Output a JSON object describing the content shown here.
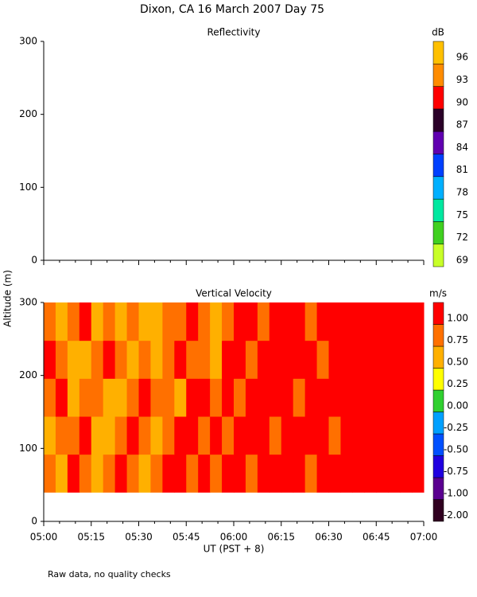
{
  "title": "Dixon, CA 16 March 2007  Day  75",
  "ylabel": "Altitude (m)",
  "footnote": "Raw data, no quality checks",
  "chart_data": [
    {
      "type": "heatmap",
      "title": "Reflectivity",
      "xticks": [
        "05:00",
        "05:15",
        "05:30",
        "05:45",
        "06:00",
        "06:15",
        "06:30",
        "06:45",
        "07:00"
      ],
      "ylim": [
        0,
        300
      ],
      "yticks": [
        0,
        100,
        200,
        300
      ],
      "colorbar": {
        "label": "dB",
        "ticks": [
          69,
          72,
          75,
          78,
          81,
          84,
          87,
          90,
          93,
          96
        ],
        "colors": [
          "#c8ff28",
          "#40d020",
          "#00e8a0",
          "#00b0ff",
          "#0040ff",
          "#6000b0",
          "#2a0028",
          "#ff0000",
          "#ff8c00",
          "#ffc000"
        ]
      }
    },
    {
      "type": "heatmap",
      "title": "Vertical Velocity",
      "xlabel": "UT  (PST + 8)",
      "xticks": [
        "05:00",
        "05:15",
        "05:30",
        "05:45",
        "06:00",
        "06:15",
        "06:30",
        "06:45",
        "07:00"
      ],
      "ylim": [
        0,
        300
      ],
      "yticks": [
        0,
        100,
        200,
        300
      ],
      "ybins": [
        40,
        92,
        144,
        196,
        248,
        300
      ],
      "z": [
        [
          0.75,
          0.5,
          1,
          0.75,
          0.5,
          0.75,
          1,
          0.75,
          0.5,
          0.75,
          1,
          1,
          0.75,
          1,
          0.75,
          1,
          1,
          0.75,
          1,
          1,
          1,
          1,
          0.75,
          1,
          1,
          1.1,
          1.1,
          1.1,
          1.1,
          1.1,
          1.1,
          1.1
        ],
        [
          0.5,
          0.75,
          0.75,
          1,
          0.5,
          0.5,
          0.75,
          1,
          0.75,
          0.5,
          0.75,
          1,
          1,
          0.75,
          1,
          0.75,
          1,
          1,
          1,
          0.75,
          1,
          1,
          1,
          1,
          0.75,
          1.1,
          1.1,
          1.1,
          1.1,
          1.1,
          1.1,
          1.1
        ],
        [
          0.75,
          1,
          0.5,
          0.75,
          0.75,
          0.5,
          0.5,
          0.75,
          1,
          0.75,
          0.75,
          0.5,
          1,
          1,
          0.75,
          1,
          0.75,
          1,
          1,
          1,
          1,
          0.75,
          1,
          1,
          1,
          1,
          1.1,
          1.1,
          1.1,
          1.1,
          1.1,
          1.1
        ],
        [
          1,
          0.75,
          0.5,
          0.5,
          0.75,
          1,
          0.75,
          0.5,
          0.75,
          0.5,
          0.75,
          1,
          0.75,
          0.75,
          0.5,
          1,
          1,
          0.75,
          1,
          1,
          1,
          1,
          1,
          0.75,
          1,
          1.1,
          1.1,
          1.1,
          1.1,
          1.1,
          1.1,
          1.1
        ],
        [
          0.75,
          0.5,
          0.75,
          1,
          0.5,
          0.75,
          0.5,
          0.75,
          0.5,
          0.5,
          0.75,
          0.75,
          1,
          0.75,
          0.5,
          0.75,
          1,
          1,
          0.75,
          1,
          1,
          1,
          0.75,
          1,
          1,
          1,
          1.1,
          1.1,
          1.1,
          1.1,
          1.1,
          1.1
        ]
      ],
      "colorbar": {
        "label": "m/s",
        "ticks": [
          {
            "value": -2,
            "label": "-2.00"
          },
          {
            "value": -1,
            "label": "-1.00"
          },
          {
            "value": -0.75,
            "label": "-0.75"
          },
          {
            "value": -0.5,
            "label": "-0.50"
          },
          {
            "value": -0.25,
            "label": "-0.25"
          },
          {
            "value": 0,
            "label": "0.00"
          },
          {
            "value": 0.25,
            "label": "0.25"
          },
          {
            "value": 0.5,
            "label": "0.50"
          },
          {
            "value": 0.75,
            "label": "0.75"
          },
          {
            "value": 1,
            "label": "1.00"
          }
        ],
        "colors": [
          "#300020",
          "#5a0090",
          "#2000e0",
          "#0050ff",
          "#00a0ff",
          "#30d030",
          "#ffff00",
          "#ffb000",
          "#ff7000",
          "#ff0000"
        ]
      }
    }
  ]
}
